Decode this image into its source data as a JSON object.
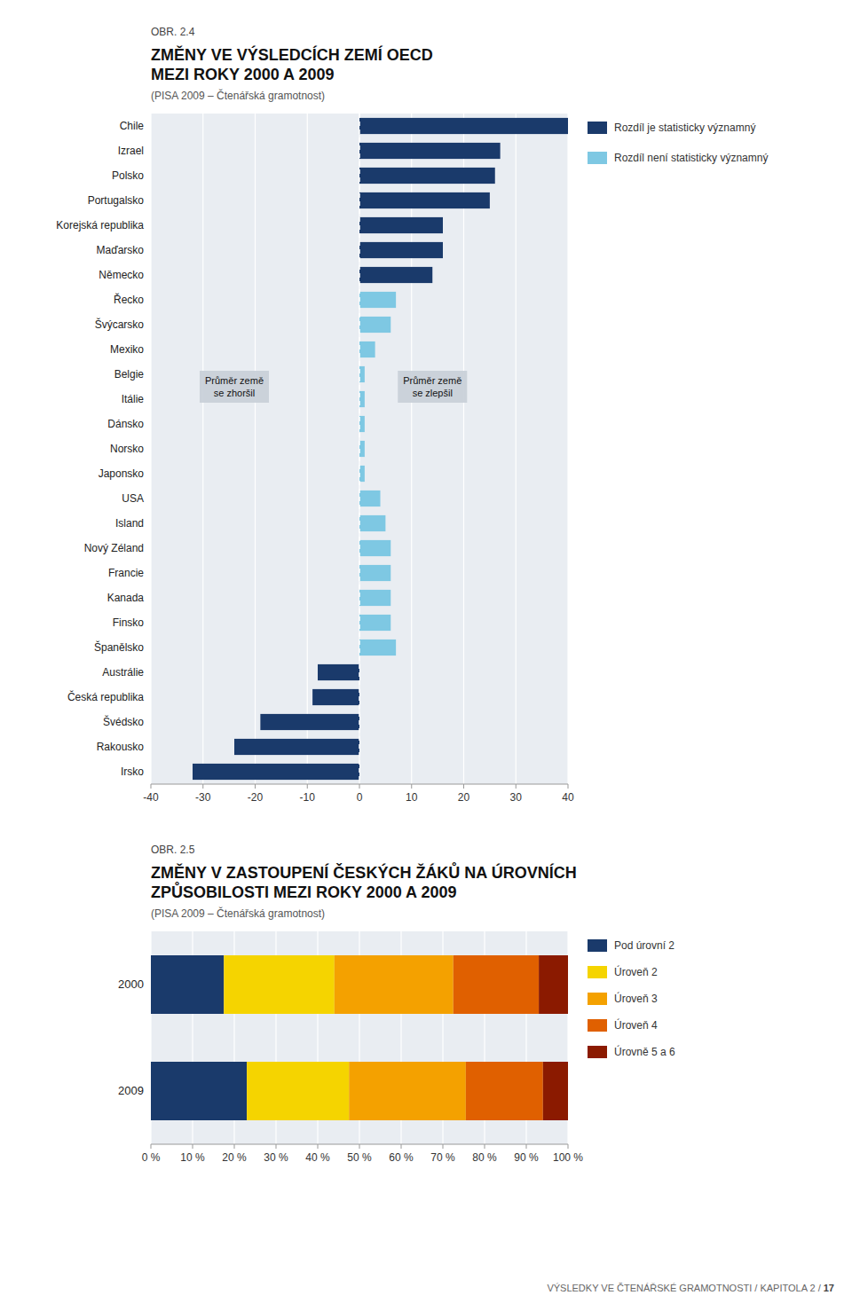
{
  "chart_data": [
    {
      "type": "bar",
      "orientation": "horizontal",
      "stacked": true,
      "grid": true,
      "legend": "right",
      "title": "ZMĚNY VE VÝSLEDCÍCH ZEMÍ OECD\nMEZI ROKY 2000 A 2009",
      "subtitle": "(PISA 2009 – Čtenářská gramotnost)",
      "annotations": [
        {
          "text": "OBR. 2.4"
        },
        {
          "text": "Průměr země\nse zhoršil",
          "x": -24
        },
        {
          "text": "Průměr země\nse zlepšil",
          "x": 14
        }
      ],
      "categories": [
        "Chile",
        "Izrael",
        "Polsko",
        "Portugalsko",
        "Korejská republika",
        "Maďarsko",
        "Německo",
        "Řecko",
        "Švýcarsko",
        "Mexiko",
        "Belgie",
        "Itálie",
        "Dánsko",
        "Norsko",
        "Japonsko",
        "USA",
        "Island",
        "Nový Zéland",
        "Francie",
        "Kanada",
        "Finsko",
        "Španělsko",
        "Austrálie",
        "Česká republika",
        "Švédsko",
        "Rakousko",
        "Irsko"
      ],
      "series": [
        {
          "name": "Rozdíl je statisticky významný",
          "color": "#1a3a6b",
          "values": [
            40,
            27,
            26,
            25,
            16,
            16,
            14,
            null,
            null,
            null,
            null,
            null,
            null,
            null,
            null,
            null,
            null,
            null,
            null,
            null,
            null,
            null,
            -8,
            -9,
            -19,
            -24,
            -32
          ]
        },
        {
          "name": "Rozdíl není statisticky významný",
          "color": "#7ec8e3",
          "values": [
            null,
            null,
            null,
            null,
            null,
            null,
            null,
            7,
            6,
            3,
            1,
            1,
            1,
            1,
            1,
            4,
            5,
            6,
            6,
            6,
            6,
            7,
            null,
            null,
            null,
            null,
            null
          ]
        }
      ],
      "xlim": [
        -40,
        40
      ],
      "xticks": [
        -40,
        -30,
        -20,
        -10,
        0,
        10,
        20,
        30,
        40
      ]
    },
    {
      "type": "bar",
      "orientation": "horizontal",
      "stacked": true,
      "grid": true,
      "legend": "right",
      "title": "ZMĚNY V ZASTOUPENÍ ČESKÝCH ŽÁKŮ NA ÚROVNÍCH\nZPŮSOBILOSTI MEZI ROKY 2000 A 2009",
      "subtitle": "(PISA 2009 – Čtenářská gramotnost)",
      "annotations": [
        {
          "text": "OBR. 2.5"
        }
      ],
      "categories": [
        "2000",
        "2009"
      ],
      "series": [
        {
          "name": "Pod úrovní 2",
          "color": "#1a3a6b",
          "values": [
            17.5,
            23.0
          ]
        },
        {
          "name": "Úroveň 2",
          "color": "#f5d400",
          "values": [
            26.5,
            24.5
          ]
        },
        {
          "name": "Úroveň 3",
          "color": "#f4a100",
          "values": [
            28.5,
            28.0
          ]
        },
        {
          "name": "Úroveň 4",
          "color": "#e06000",
          "values": [
            20.5,
            18.5
          ]
        },
        {
          "name": "Úrovně 5 a 6",
          "color": "#8b1a00",
          "values": [
            7.0,
            6.0
          ]
        }
      ],
      "xlim": [
        0,
        100
      ],
      "xticks": [
        {
          "value": 0,
          "label": "0 %"
        },
        {
          "value": 10,
          "label": "10 %"
        },
        {
          "value": 20,
          "label": "20 %"
        },
        {
          "value": 30,
          "label": "30 %"
        },
        {
          "value": 40,
          "label": "40 %"
        },
        {
          "value": 50,
          "label": "50 %"
        },
        {
          "value": 60,
          "label": "60 %"
        },
        {
          "value": 70,
          "label": "70 %"
        },
        {
          "value": 80,
          "label": "80 %"
        },
        {
          "value": 90,
          "label": "90 %"
        },
        {
          "value": 100,
          "label": "100 %"
        }
      ]
    }
  ],
  "footer": [
    "VÝSLEDKY VE ČTENÁŘSKÉ GRAMOTNOSTI / KAPITOLA 2 / ",
    "17"
  ]
}
